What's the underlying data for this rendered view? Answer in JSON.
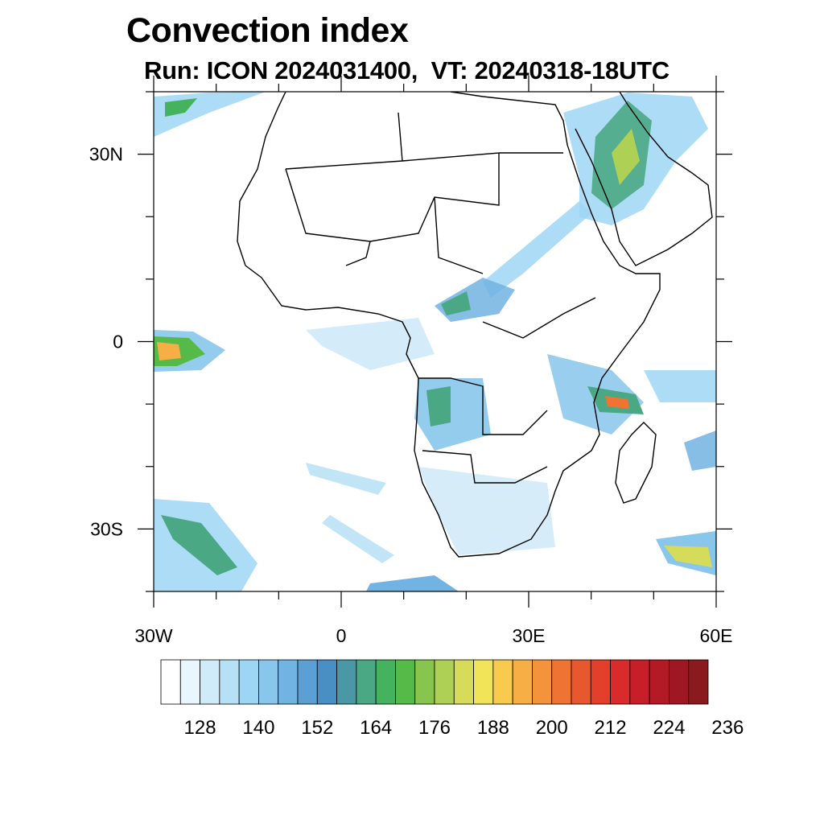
{
  "title": "Convection index",
  "subtitle": "Run: ICON 2024031400,  VT: 20240318-18UTC",
  "map": {
    "extent": {
      "lon_min": -30,
      "lon_max": 60,
      "lat_min": -40,
      "lat_max": 40
    },
    "lat_ticks": [
      {
        "lat": 30,
        "label": "30N"
      },
      {
        "lat": 0,
        "label": "0"
      },
      {
        "lat": -30,
        "label": "30S"
      }
    ],
    "lon_ticks": [
      {
        "lon": -30,
        "label": "30W"
      },
      {
        "lon": 0,
        "label": "0"
      },
      {
        "lon": 30,
        "label": "30E"
      },
      {
        "lon": 60,
        "label": "60E"
      }
    ],
    "coastline_color": "#000000"
  },
  "colorbar": {
    "colors": [
      "#ffffff",
      "#eaf6fd",
      "#cfeaf8",
      "#b6e0f6",
      "#9dd6f4",
      "#88c6ec",
      "#71b3e2",
      "#5b9fd5",
      "#4a8fc4",
      "#4a97a6",
      "#4aa884",
      "#45b35e",
      "#55ba48",
      "#88c54e",
      "#aed055",
      "#d6dc5a",
      "#f1e458",
      "#f8ca4e",
      "#f6ae45",
      "#f4933c",
      "#ef7434",
      "#e8582e",
      "#e2402b",
      "#d92b2b",
      "#c81e2a",
      "#b41926",
      "#9f1722",
      "#8b1a1f"
    ],
    "labels": [
      "128",
      "140",
      "152",
      "164",
      "176",
      "188",
      "200",
      "212",
      "224",
      "236"
    ]
  }
}
